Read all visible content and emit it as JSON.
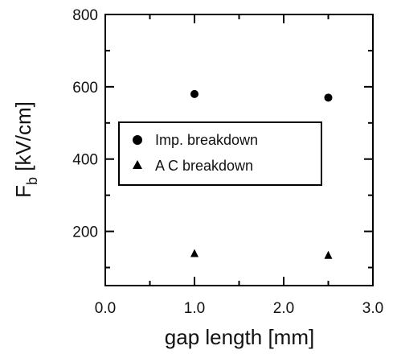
{
  "chart_data": {
    "type": "scatter",
    "xlabel": "gap length [mm]",
    "ylabel": {
      "main": "F",
      "subscript": "b",
      "unit": " [kV/cm]"
    },
    "xlim": [
      0,
      3.0
    ],
    "ylim": [
      50,
      800
    ],
    "xticks": [
      0.0,
      1.0,
      2.0,
      3.0
    ],
    "xtick_labels": [
      "0.0",
      "1.0",
      "2.0",
      "3.0"
    ],
    "yticks": [
      200,
      400,
      600,
      800
    ],
    "ytick_labels": [
      "200",
      "400",
      "600",
      "800"
    ],
    "grid": false,
    "legend_position": "center-left",
    "series": [
      {
        "name": "Imp. breakdown",
        "marker": "circle",
        "color": "#000000",
        "x": [
          1.0,
          2.5
        ],
        "y": [
          580,
          570
        ]
      },
      {
        "name": "A C breakdown",
        "marker": "triangle",
        "color": "#000000",
        "x": [
          1.0,
          2.5
        ],
        "y": [
          140,
          135
        ]
      }
    ]
  }
}
